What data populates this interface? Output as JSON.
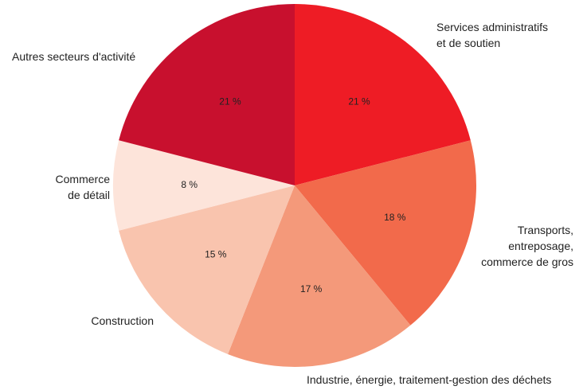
{
  "chart_data": {
    "type": "pie",
    "categories": [
      "Services administratifs\net de soutien",
      "Transports,\nentreposage,\ncommerce de gros",
      "Industrie, énergie, traitement-gestion des déchets",
      "Construction",
      "Commerce\nde détail",
      "Autres secteurs d'activité"
    ],
    "values": [
      21,
      18,
      17,
      15,
      8,
      21
    ],
    "value_labels": [
      "21 %",
      "18 %",
      "17 %",
      "15 %",
      "8 %",
      "21 %"
    ],
    "colors": [
      "#ee1c25",
      "#f26a4b",
      "#f4997a",
      "#f9c4ae",
      "#fde4da",
      "#c8102e"
    ]
  }
}
